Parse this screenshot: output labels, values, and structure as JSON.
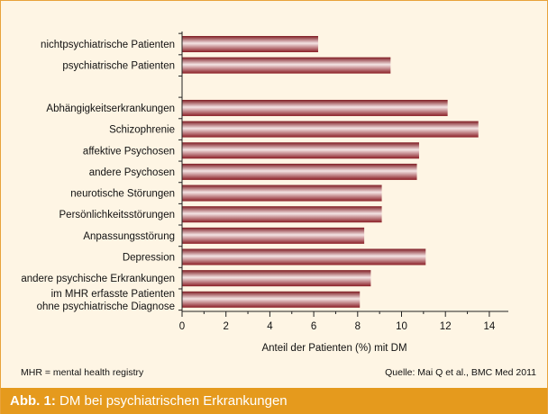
{
  "chart_data": {
    "type": "bar",
    "orientation": "horizontal",
    "categories": [
      "nichtpsychiatrische Patienten",
      "psychiatrische Patienten",
      "",
      "Abhängigkeitserkrankungen",
      "Schizophrenie",
      "affektive Psychosen",
      "andere Psychosen",
      "neurotische Störungen",
      "Persönlichkeitsstörungen",
      "Anpassungsstörung",
      "Depression",
      "andere psychische Erkrankungen",
      "im MHR erfasste Patienten ohne psychiatrische Diagnose"
    ],
    "category_lines": [
      [
        "nichtpsychiatrische Patienten"
      ],
      [
        "psychiatrische Patienten"
      ],
      [],
      [
        "Abhängigkeitserkrankungen"
      ],
      [
        "Schizophrenie"
      ],
      [
        "affektive Psychosen"
      ],
      [
        "andere Psychosen"
      ],
      [
        "neurotische Störungen"
      ],
      [
        "Persönlichkeitsstörungen"
      ],
      [
        "Anpassungsstörung"
      ],
      [
        "Depression"
      ],
      [
        "andere psychische Erkrankungen"
      ],
      [
        "im MHR erfasste Patienten",
        "ohne psychiatrische Diagnose"
      ]
    ],
    "values": [
      6.2,
      9.5,
      null,
      12.1,
      13.5,
      10.8,
      10.7,
      9.1,
      9.1,
      8.3,
      11.1,
      8.6,
      8.1
    ],
    "xlabel": "Anteil der Patienten (%) mit DM",
    "xlim": [
      0,
      15
    ],
    "xticks": [
      0,
      2,
      4,
      6,
      8,
      10,
      12,
      14
    ],
    "grid": false,
    "bar_color": "#a4262d"
  },
  "footnote_left": "MHR = mental health registry",
  "footnote_right": "Quelle: Mai Q et al., BMC Med 2011",
  "caption": {
    "label": "Abb. 1:",
    "text": "DM bei psychiatrischen Erkrankungen"
  },
  "colors": {
    "background": "#fef5e4",
    "caption_bar": "#e59a1d",
    "bar_dark": "#a4262d"
  }
}
